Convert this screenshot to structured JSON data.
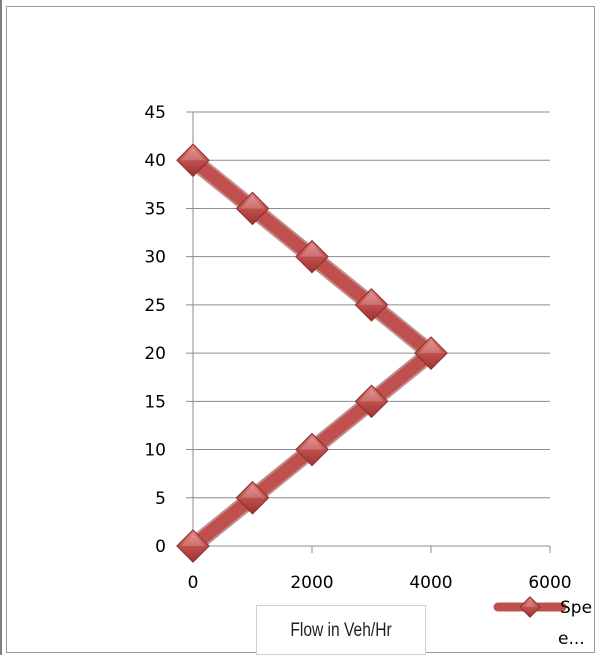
{
  "chart_data": {
    "type": "line",
    "xlabel": "Flow in Veh/Hr",
    "ylabel": "",
    "xlim": [
      0,
      6000
    ],
    "ylim": [
      0,
      45
    ],
    "xticks": [
      0,
      2000,
      4000,
      6000
    ],
    "yticks": [
      0,
      5,
      10,
      15,
      20,
      25,
      30,
      35,
      40,
      45
    ],
    "grid": "horizontal",
    "legend_position": "bottom-right",
    "series": [
      {
        "legend_label_line1": "Spe",
        "legend_label_line2": "e...",
        "color": "#c0504d",
        "marker": "diamond",
        "points": [
          {
            "x": 0,
            "y": 40
          },
          {
            "x": 1000,
            "y": 35
          },
          {
            "x": 2000,
            "y": 30
          },
          {
            "x": 3000,
            "y": 25
          },
          {
            "x": 4000,
            "y": 20
          },
          {
            "x": 3000,
            "y": 15
          },
          {
            "x": 2000,
            "y": 10
          },
          {
            "x": 1000,
            "y": 5
          },
          {
            "x": 0,
            "y": 0
          }
        ]
      }
    ]
  }
}
